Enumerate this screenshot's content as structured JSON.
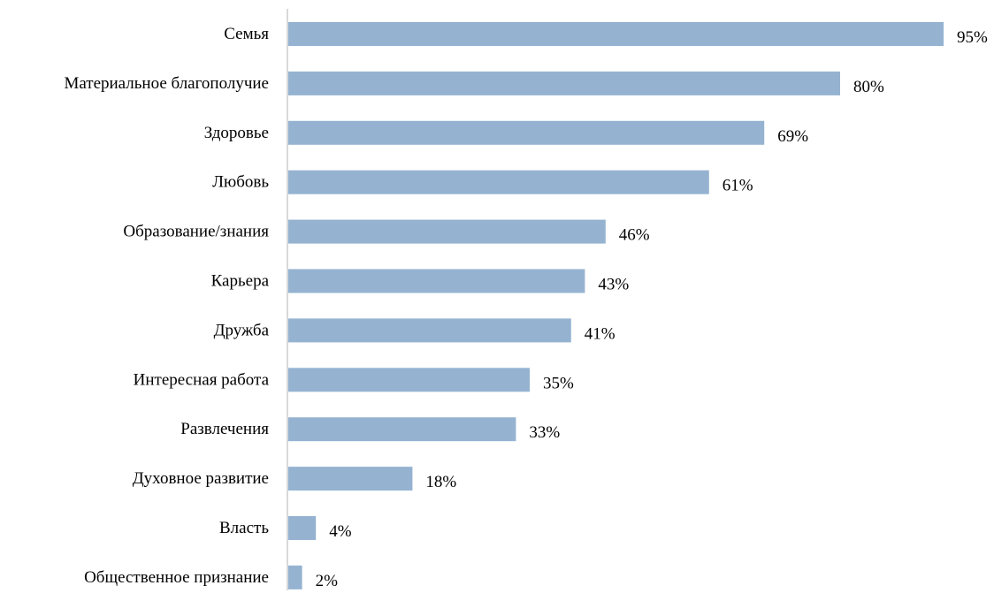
{
  "chart_data": {
    "type": "bar",
    "orientation": "horizontal",
    "categories": [
      "Семья",
      "Материальное благополучие",
      "Здоровье",
      "Любовь",
      "Образование/знания",
      "Карьера",
      "Дружба",
      "Интересная работа",
      "Развлечения",
      "Духовное развитие",
      "Власть",
      "Общественное признание"
    ],
    "values": [
      95,
      80,
      69,
      61,
      46,
      43,
      41,
      35,
      33,
      18,
      4,
      2
    ],
    "value_labels": [
      "95%",
      "80%",
      "69%",
      "61%",
      "46%",
      "43%",
      "41%",
      "35%",
      "33%",
      "18%",
      "4%",
      "2%"
    ],
    "value_unit": "%",
    "xlim": [
      0,
      100
    ],
    "title": "",
    "xlabel": "",
    "ylabel": "",
    "grid": false,
    "legend": "none",
    "bar_color": "#95b3d1",
    "axis_color": "#d9d9d9"
  }
}
